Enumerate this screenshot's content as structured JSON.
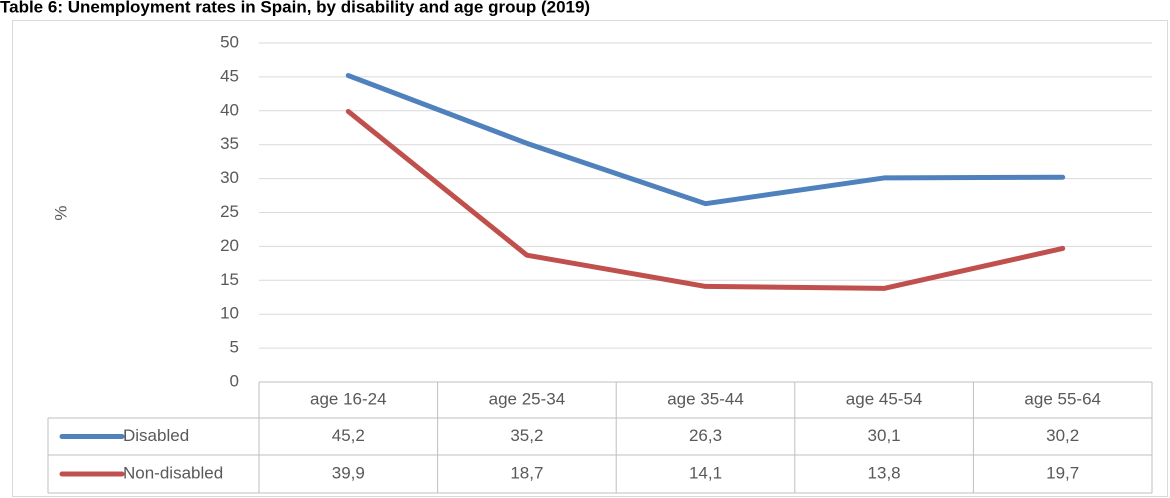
{
  "chart_data": {
    "type": "line",
    "title": "Table 6: Unemployment rates in Spain, by disability and age group (2019)",
    "y_axis_label": "%",
    "categories": [
      "age 16-24",
      "age 25-34",
      "age 35-44",
      "age 45-54",
      "age 55-64"
    ],
    "series": [
      {
        "name": "Disabled",
        "color": "#4f81bd",
        "values": [
          45.2,
          35.2,
          26.3,
          30.1,
          30.2
        ],
        "value_labels": [
          "45,2",
          "35,2",
          "26,3",
          "30,1",
          "30,2"
        ]
      },
      {
        "name": "Non-disabled",
        "color": "#c0504d",
        "values": [
          39.9,
          18.7,
          14.1,
          13.8,
          19.7
        ],
        "value_labels": [
          "39,9",
          "18,7",
          "14,1",
          "13,8",
          "19,7"
        ]
      }
    ],
    "ylim": [
      0,
      50
    ],
    "yticks": [
      0,
      5,
      10,
      15,
      20,
      25,
      30,
      35,
      40,
      45,
      50
    ],
    "grid": true
  }
}
